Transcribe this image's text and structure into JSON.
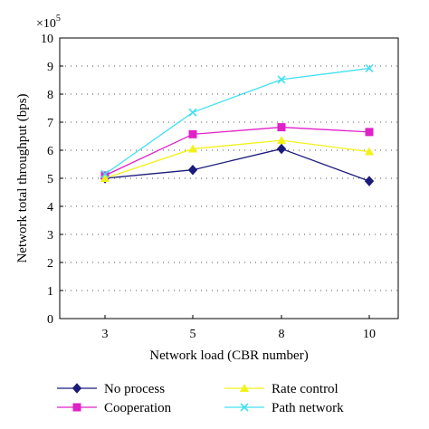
{
  "chart_data": {
    "type": "line",
    "x": [
      3,
      5,
      8,
      10
    ],
    "x_tick_labels": [
      "3",
      "5",
      "8",
      "10"
    ],
    "y_tick_labels": [
      "0",
      "1",
      "2",
      "3",
      "4",
      "5",
      "6",
      "7",
      "8",
      "9",
      "10"
    ],
    "y_multiplier_label": "×10",
    "y_multiplier_exponent": "5",
    "xlabel": "Network load (CBR number)",
    "ylabel": "Network total throughput (bps)",
    "ylim": [
      0,
      10
    ],
    "grid": "horizontal dotted",
    "legend_placement": "bottom",
    "series": [
      {
        "name": "No process",
        "color": "#1b1b7a",
        "marker": "diamond",
        "values": [
          5.0,
          5.3,
          6.05,
          4.9
        ]
      },
      {
        "name": "Cooperation",
        "color": "#e020c8",
        "marker": "square",
        "values": [
          5.1,
          6.57,
          6.82,
          6.65
        ]
      },
      {
        "name": "Rate control",
        "color": "#f2f21a",
        "marker": "triangle",
        "values": [
          5.0,
          6.05,
          6.35,
          5.95
        ]
      },
      {
        "name": "Path network",
        "color": "#40e0f0",
        "marker": "x",
        "values": [
          5.15,
          7.35,
          8.52,
          8.92
        ]
      }
    ]
  }
}
